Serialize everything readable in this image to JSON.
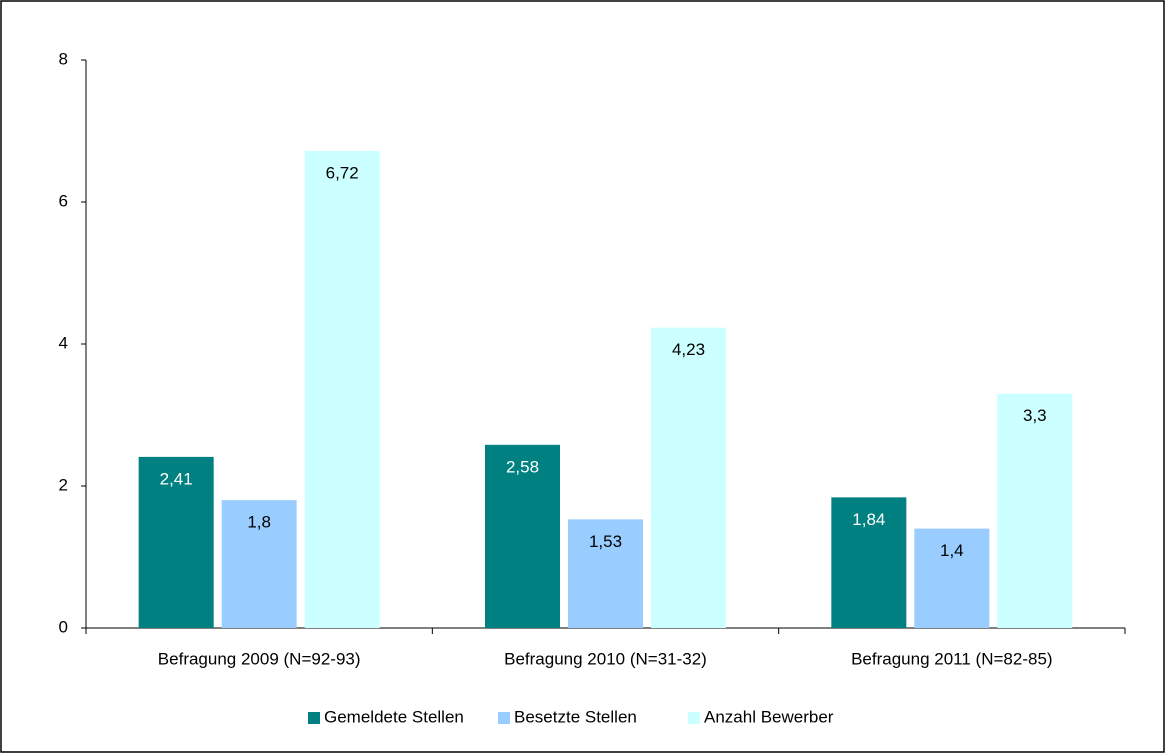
{
  "chart_data": {
    "type": "bar",
    "categories": [
      "Befragung 2009 (N=92-93)",
      "Befragung 2010 (N=31-32)",
      "Befragung 2011 (N=82-85)"
    ],
    "series": [
      {
        "name": "Gemeldete Stellen",
        "color": "#008080",
        "values": [
          2.41,
          2.58,
          1.84
        ],
        "value_labels": [
          "2,41",
          "2,58",
          "1,84"
        ]
      },
      {
        "name": "Besetzte Stellen",
        "color": "#99ccff",
        "values": [
          1.8,
          1.53,
          1.4
        ],
        "value_labels": [
          "1,8",
          "1,53",
          "1,4"
        ]
      },
      {
        "name": "Anzahl Bewerber",
        "color": "#ccffff",
        "values": [
          6.72,
          4.23,
          3.3
        ],
        "value_labels": [
          "6,72",
          "4,23",
          "3,3"
        ]
      }
    ],
    "ylim": [
      0,
      8
    ],
    "yticks": [
      0,
      2,
      4,
      6,
      8
    ],
    "grid": false,
    "legend": "bottom"
  }
}
